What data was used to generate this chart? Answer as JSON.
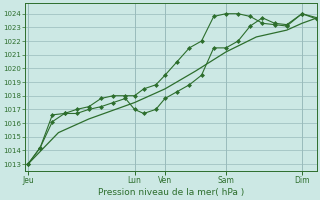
{
  "xlabel": "Pression niveau de la mer( hPa )",
  "bg_color": "#cce8e4",
  "grid_color": "#99bbbb",
  "line_color": "#2d6e2d",
  "marker_color": "#2d6e2d",
  "ylim": [
    1012.5,
    1024.8
  ],
  "yticks": [
    1013,
    1014,
    1015,
    1016,
    1017,
    1018,
    1019,
    1020,
    1021,
    1022,
    1023,
    1024
  ],
  "x_tick_labels": [
    "Jeu",
    "Lun",
    "Ven",
    "Sam",
    "Dim"
  ],
  "x_tick_positions": [
    0,
    3.5,
    4.5,
    6.5,
    9.0
  ],
  "x_vlines": [
    0,
    3.5,
    4.5,
    6.5,
    9.0
  ],
  "xlim": [
    -0.1,
    9.5
  ],
  "series1_x": [
    0,
    0.4,
    0.8,
    1.2,
    1.6,
    2.0,
    2.4,
    2.8,
    3.2,
    3.5,
    3.8,
    4.2,
    4.5,
    4.9,
    5.3,
    5.7,
    6.1,
    6.5,
    6.9,
    7.3,
    7.7,
    8.1,
    8.5,
    9.0,
    9.5
  ],
  "series1_y": [
    1013.0,
    1014.2,
    1016.1,
    1016.7,
    1016.7,
    1017.0,
    1017.2,
    1017.5,
    1017.8,
    1017.0,
    1016.7,
    1017.0,
    1017.8,
    1018.3,
    1018.8,
    1019.5,
    1021.5,
    1021.5,
    1022.0,
    1023.1,
    1023.7,
    1023.3,
    1023.2,
    1024.0,
    1023.7
  ],
  "series2_x": [
    0,
    0.4,
    0.8,
    1.2,
    1.6,
    2.0,
    2.4,
    2.8,
    3.2,
    3.5,
    3.8,
    4.2,
    4.5,
    4.9,
    5.3,
    5.7,
    6.1,
    6.5,
    6.9,
    7.3,
    7.7,
    8.1,
    8.5,
    9.0,
    9.5
  ],
  "series2_y": [
    1013.0,
    1014.2,
    1016.6,
    1016.7,
    1017.0,
    1017.2,
    1017.8,
    1018.0,
    1018.0,
    1018.0,
    1018.5,
    1018.8,
    1019.5,
    1020.5,
    1021.5,
    1022.0,
    1023.8,
    1024.0,
    1024.0,
    1023.8,
    1023.3,
    1023.2,
    1023.1,
    1024.0,
    1023.6
  ],
  "series3_x": [
    0,
    1.0,
    2.0,
    3.0,
    3.5,
    4.5,
    5.5,
    6.5,
    7.5,
    8.5,
    9.0,
    9.5
  ],
  "series3_y": [
    1013.0,
    1015.3,
    1016.3,
    1017.1,
    1017.5,
    1018.5,
    1019.8,
    1021.2,
    1022.3,
    1022.8,
    1023.3,
    1023.7
  ]
}
